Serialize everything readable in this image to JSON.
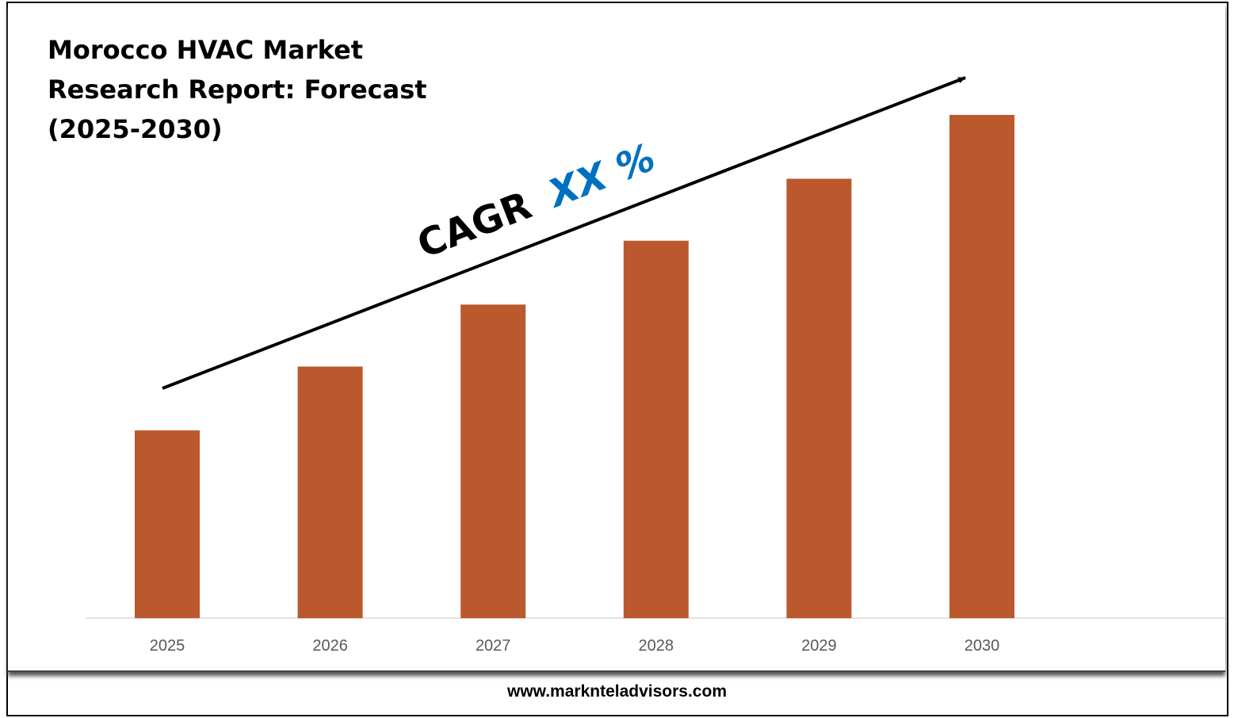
{
  "chart_data": {
    "type": "bar",
    "title": "Morocco HVAC Market Research Report: Forecast (2025-2030)",
    "categories": [
      "2025",
      "2026",
      "2027",
      "2028",
      "2029",
      "2030"
    ],
    "values": [
      1.0,
      1.34,
      1.67,
      2.01,
      2.34,
      2.68
    ],
    "xlabel": "",
    "ylabel": "",
    "ylim": [
      0,
      2.68
    ],
    "grid": false,
    "bar_color": "#BC582D",
    "annotation": {
      "prefix": "CAGR",
      "value": "XX %",
      "value_color": "#0070C0"
    }
  },
  "footer": {
    "url": "www.marknteladvisors.com"
  }
}
